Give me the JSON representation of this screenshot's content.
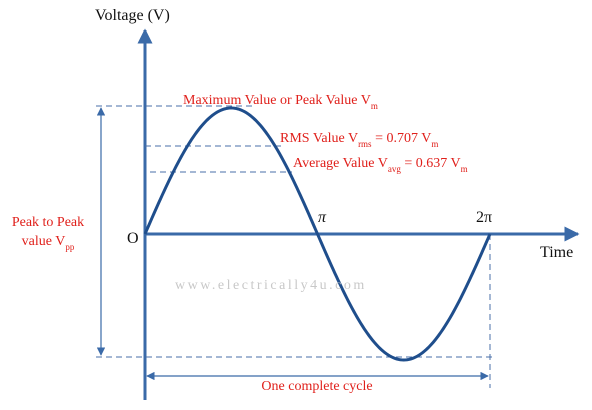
{
  "axes": {
    "y_label": "Voltage (V)",
    "x_label": "Time",
    "origin": "O",
    "pi": "π",
    "two_pi": "2π"
  },
  "labels": {
    "peak": [
      "Maximum Value or Peak Value V",
      "m"
    ],
    "rms": [
      "RMS Value V",
      "rms",
      " = 0.707 V",
      "m"
    ],
    "average": [
      "Average Value V",
      "avg",
      " = 0.637 V",
      "m"
    ],
    "peak_to_peak_line1": "Peak to Peak",
    "peak_to_peak_line2": [
      "value V",
      "pp"
    ],
    "cycle": "One complete cycle"
  },
  "watermark": "www.electrically4u.com"
}
